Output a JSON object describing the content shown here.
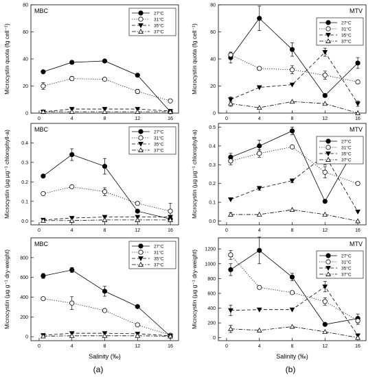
{
  "figure": {
    "panel_labels": [
      "(a)",
      "(b)"
    ],
    "xlabel": "Salinity (‰)"
  },
  "legend_marker_styles": {
    "27°C": {
      "marker": "filled-circle",
      "dash": "solid"
    },
    "31°C": {
      "marker": "open-circle",
      "dash": "dotted"
    },
    "35°C": {
      "marker": "filled-triangle-down",
      "dash": "dashed"
    },
    "37°C": {
      "marker": "open-triangle-up",
      "dash": "dashdot"
    }
  },
  "chart_data": [
    {
      "type": "line",
      "title": "MBC",
      "ylabel": "Microcystin quota (fg cell⁻¹)",
      "x": [
        0.5,
        4,
        8,
        12,
        16
      ],
      "xticks": [
        0,
        4,
        8,
        12,
        16
      ],
      "xlim": [
        -1,
        17
      ],
      "ylim": [
        0,
        80
      ],
      "yticks": [
        0,
        20,
        40,
        60,
        80
      ],
      "series": [
        {
          "name": "27°C",
          "values": [
            30.5,
            37.5,
            38.5,
            28,
            1
          ],
          "errors": [
            0,
            0,
            0,
            0,
            0
          ]
        },
        {
          "name": "31°C",
          "values": [
            20,
            25.5,
            25,
            16,
            9
          ],
          "errors": [
            2.5,
            1.5,
            0,
            1.5,
            0
          ]
        },
        {
          "name": "35°C",
          "values": [
            1,
            3,
            3,
            3,
            1.5
          ],
          "errors": [
            0,
            0,
            0,
            0,
            0
          ]
        },
        {
          "name": "37°C",
          "values": [
            1,
            1,
            1,
            1,
            1
          ],
          "errors": [
            0,
            0,
            0,
            0,
            0
          ]
        }
      ]
    },
    {
      "type": "line",
      "title": "MTV",
      "ylabel": "Microcystin quota (fg cell⁻¹)",
      "x": [
        0.5,
        4,
        8,
        12,
        16
      ],
      "xticks": [
        0,
        4,
        8,
        12,
        16
      ],
      "xlim": [
        -1,
        17
      ],
      "ylim": [
        0,
        80
      ],
      "yticks": [
        0,
        20,
        40,
        60,
        80
      ],
      "series": [
        {
          "name": "27°C",
          "values": [
            41,
            70,
            47,
            13,
            37
          ],
          "errors": [
            4,
            9,
            5,
            0,
            4
          ]
        },
        {
          "name": "31°C",
          "values": [
            43,
            33,
            32,
            28,
            23
          ],
          "errors": [
            2,
            0,
            3,
            3,
            0
          ]
        },
        {
          "name": "35°C",
          "values": [
            10,
            19,
            21,
            45,
            7
          ],
          "errors": [
            2,
            0,
            0,
            3,
            2
          ]
        },
        {
          "name": "37°C",
          "values": [
            7,
            4,
            8.5,
            7,
            0
          ],
          "errors": [
            2,
            0,
            0,
            0,
            0
          ]
        }
      ]
    },
    {
      "type": "line",
      "title": "MBC",
      "ylabel": "Microcystin (µg µg⁻¹ chlorophyll-a)",
      "x": [
        0.5,
        4,
        8,
        12,
        16
      ],
      "xticks": [
        0,
        4,
        8,
        12,
        16
      ],
      "xlim": [
        -1,
        17
      ],
      "ylim": [
        -0.02,
        0.5
      ],
      "yticks": [
        0.0,
        0.1,
        0.2,
        0.3,
        0.4
      ],
      "series": [
        {
          "name": "27°C",
          "values": [
            0.23,
            0.34,
            0.28,
            0.05,
            0.01
          ],
          "errors": [
            0,
            0.03,
            0.04,
            0,
            0
          ]
        },
        {
          "name": "31°C",
          "values": [
            0.14,
            0.175,
            0.15,
            0.09,
            0.05
          ],
          "errors": [
            0,
            0,
            0.02,
            0,
            0.04
          ]
        },
        {
          "name": "35°C",
          "values": [
            0.005,
            0.015,
            0.02,
            0.02,
            0.02
          ],
          "errors": [
            0,
            0,
            0,
            0,
            0
          ]
        },
        {
          "name": "37°C",
          "values": [
            0.002,
            0.002,
            0.005,
            0.005,
            0.005
          ],
          "errors": [
            0,
            0,
            0,
            0,
            0
          ]
        }
      ]
    },
    {
      "type": "line",
      "title": "MTV",
      "ylabel": "Microcystin (µg µg⁻¹ chlorophyll-a)",
      "x": [
        0.5,
        4,
        8,
        12,
        16
      ],
      "xticks": [
        0,
        4,
        8,
        12,
        16
      ],
      "xlim": [
        -1,
        17
      ],
      "ylim": [
        -0.02,
        0.52
      ],
      "yticks": [
        0.0,
        0.1,
        0.2,
        0.3,
        0.4,
        0.5
      ],
      "series": [
        {
          "name": "27°C",
          "values": [
            0.34,
            0.4,
            0.48,
            0.105,
            0.415
          ],
          "errors": [
            0.02,
            0.03,
            0.02,
            0,
            0.02
          ]
        },
        {
          "name": "31°C",
          "values": [
            0.32,
            0.36,
            0.395,
            0.26,
            0.2
          ],
          "errors": [
            0.02,
            0.02,
            0,
            0.03,
            0
          ]
        },
        {
          "name": "35°C",
          "values": [
            0.115,
            0.175,
            0.215,
            0.35,
            0.05
          ],
          "errors": [
            0,
            0.01,
            0.01,
            0.05,
            0
          ]
        },
        {
          "name": "37°C",
          "values": [
            0.035,
            0.035,
            0.06,
            0.035,
            0.0
          ],
          "errors": [
            0.01,
            0,
            0,
            0,
            0
          ]
        }
      ]
    },
    {
      "type": "line",
      "title": "MBC",
      "ylabel": "Microcystin (µg g⁻¹ dry-weight)",
      "x": [
        0.5,
        4,
        8,
        12,
        16
      ],
      "xticks": [
        0,
        4,
        8,
        12,
        16
      ],
      "xlim": [
        -1,
        17
      ],
      "ylim": [
        -40,
        1000
      ],
      "yticks": [
        0,
        200,
        400,
        600,
        800
      ],
      "series": [
        {
          "name": "27°C",
          "values": [
            615,
            675,
            460,
            305,
            5
          ],
          "errors": [
            25,
            25,
            50,
            0,
            0
          ]
        },
        {
          "name": "31°C",
          "values": [
            385,
            340,
            265,
            120,
            15
          ],
          "errors": [
            0,
            65,
            0,
            0,
            0
          ]
        },
        {
          "name": "35°C",
          "values": [
            15,
            35,
            35,
            30,
            10
          ],
          "errors": [
            0,
            0,
            0,
            0,
            0
          ]
        },
        {
          "name": "37°C",
          "values": [
            5,
            10,
            10,
            10,
            5
          ],
          "errors": [
            0,
            0,
            0,
            0,
            0
          ]
        }
      ]
    },
    {
      "type": "line",
      "title": "MTV",
      "ylabel": "Microcystin (µg g⁻¹ dry-weight)",
      "x": [
        0.5,
        4,
        8,
        12,
        16
      ],
      "xticks": [
        0,
        4,
        8,
        12,
        16
      ],
      "xlim": [
        -1,
        17
      ],
      "ylim": [
        -40,
        1350
      ],
      "yticks": [
        0,
        200,
        400,
        600,
        800,
        1000,
        1200
      ],
      "series": [
        {
          "name": "27°C",
          "values": [
            920,
            1180,
            820,
            180,
            260
          ],
          "errors": [
            80,
            180,
            50,
            0,
            60
          ]
        },
        {
          "name": "31°C",
          "values": [
            1120,
            680,
            610,
            490,
            230
          ],
          "errors": [
            60,
            0,
            0,
            50,
            50
          ]
        },
        {
          "name": "35°C",
          "values": [
            370,
            380,
            380,
            690,
            30
          ],
          "errors": [
            70,
            0,
            0,
            70,
            0
          ]
        },
        {
          "name": "37°C",
          "values": [
            120,
            100,
            150,
            80,
            0
          ],
          "errors": [
            50,
            0,
            0,
            0,
            0
          ]
        }
      ]
    }
  ]
}
